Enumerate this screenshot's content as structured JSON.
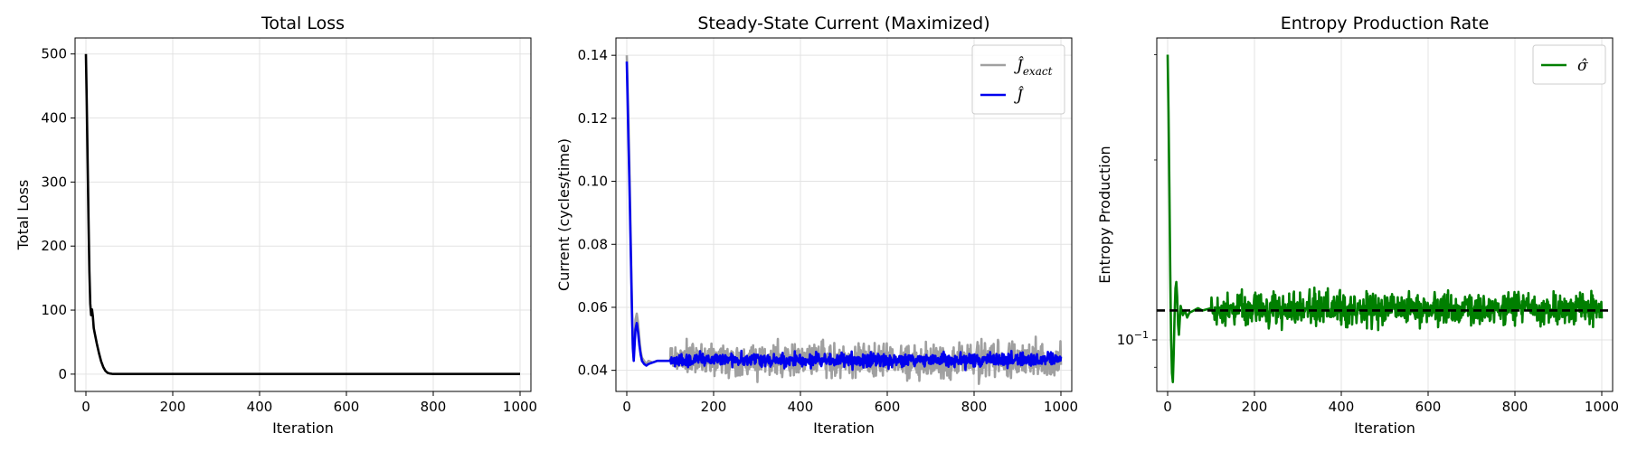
{
  "chart_data": [
    {
      "type": "line",
      "title": "Total Loss",
      "xlabel": "Iteration",
      "ylabel": "Total Loss",
      "xlim": [
        -25,
        1025
      ],
      "ylim": [
        -27,
        525
      ],
      "xticks": [
        0,
        200,
        400,
        600,
        800,
        1000
      ],
      "yticks": [
        0,
        100,
        200,
        300,
        400,
        500
      ],
      "grid": true,
      "series": [
        {
          "color": "#000000",
          "x": [
            0,
            2,
            4,
            6,
            8,
            10,
            12,
            14,
            16,
            18,
            20,
            25,
            30,
            35,
            40,
            45,
            50,
            55,
            60,
            70,
            100,
            200,
            400,
            600,
            800,
            1000
          ],
          "y": [
            500,
            420,
            330,
            240,
            160,
            110,
            92,
            101,
            90,
            72,
            65,
            48,
            33,
            20,
            11,
            5,
            2,
            1,
            0.5,
            0.3,
            0.2,
            0.2,
            0.2,
            0.2,
            0.2,
            0.2
          ]
        }
      ]
    },
    {
      "type": "line",
      "title": "Steady-State Current (Maximized)",
      "xlabel": "Iteration",
      "ylabel": "Current (cycles/time)",
      "xlim": [
        -25,
        1025
      ],
      "ylim": [
        0.0333,
        0.1455
      ],
      "xticks": [
        0,
        200,
        400,
        600,
        800,
        1000
      ],
      "yticks": [
        0.04,
        0.06,
        0.08,
        0.1,
        0.12,
        0.14
      ],
      "ytick_labels": [
        "0.04",
        "0.06",
        "0.08",
        "0.10",
        "0.12",
        "0.14"
      ],
      "grid": true,
      "legend": {
        "placement": "top-right"
      },
      "series": [
        {
          "name": "Ĵexact",
          "legend_base": "Ĵ",
          "legend_sub": "exact",
          "color": "#a0a0a0",
          "x": [
            0,
            2,
            4,
            6,
            8,
            10,
            12,
            14,
            16,
            18,
            20,
            23,
            26,
            29,
            32,
            35,
            40,
            45,
            50,
            60,
            70,
            80,
            100
          ],
          "y": [
            0.14,
            0.13,
            0.118,
            0.105,
            0.09,
            0.075,
            0.06,
            0.048,
            0.044,
            0.05,
            0.056,
            0.058,
            0.055,
            0.05,
            0.046,
            0.044,
            0.043,
            0.042,
            0.043,
            0.0425,
            0.043,
            0.043,
            0.043
          ],
          "steady": {
            "from": 100,
            "to": 1000,
            "level": 0.0432,
            "noise": 0.0028
          }
        },
        {
          "name": "Ĵ",
          "legend_base": "Ĵ",
          "legend_sub": "",
          "color": "#0000ee",
          "x": [
            0,
            2,
            4,
            6,
            8,
            10,
            12,
            14,
            16,
            18,
            20,
            23,
            26,
            29,
            32,
            35,
            40,
            45,
            50,
            60,
            70,
            80,
            100
          ],
          "y": [
            0.138,
            0.125,
            0.112,
            0.1,
            0.086,
            0.072,
            0.058,
            0.047,
            0.043,
            0.048,
            0.053,
            0.055,
            0.052,
            0.048,
            0.045,
            0.043,
            0.042,
            0.0415,
            0.042,
            0.0425,
            0.043,
            0.043,
            0.043
          ],
          "steady": {
            "from": 100,
            "to": 1000,
            "level": 0.0432,
            "noise": 0.0011
          }
        }
      ]
    },
    {
      "type": "line",
      "title": "Entropy Production Rate",
      "xlabel": "Iteration",
      "ylabel": "Entropy Production",
      "yscale": "log",
      "xlim": [
        -25,
        1025
      ],
      "ylim": [
        0.082,
        0.32
      ],
      "xticks": [
        0,
        200,
        400,
        600,
        800,
        1000
      ],
      "yticks": [
        0.1
      ],
      "ytick_labels": [
        "10"
      ],
      "ytick_exp": "−1",
      "minor_yticks": [
        0.09,
        0.2,
        0.3
      ],
      "grid": true,
      "legend": {
        "placement": "top-right"
      },
      "reference_line": {
        "y": 0.112,
        "color": "#000000",
        "style": "dashed"
      },
      "series": [
        {
          "name": "σ̂",
          "legend_base": "σ̂",
          "legend_sub": "",
          "color": "#007f00",
          "x": [
            0,
            2,
            4,
            6,
            8,
            10,
            12,
            14,
            16,
            18,
            20,
            22,
            24,
            26,
            28,
            30,
            35,
            40,
            45,
            50,
            60,
            70,
            80,
            100
          ],
          "y": [
            0.3,
            0.24,
            0.18,
            0.13,
            0.1,
            0.088,
            0.085,
            0.095,
            0.11,
            0.122,
            0.125,
            0.118,
            0.106,
            0.102,
            0.108,
            0.114,
            0.11,
            0.112,
            0.109,
            0.111,
            0.112,
            0.113,
            0.112,
            0.113
          ],
          "steady": {
            "from": 100,
            "to": 1000,
            "level": 0.1125,
            "noise": 0.0035,
            "log": true
          }
        }
      ]
    }
  ]
}
